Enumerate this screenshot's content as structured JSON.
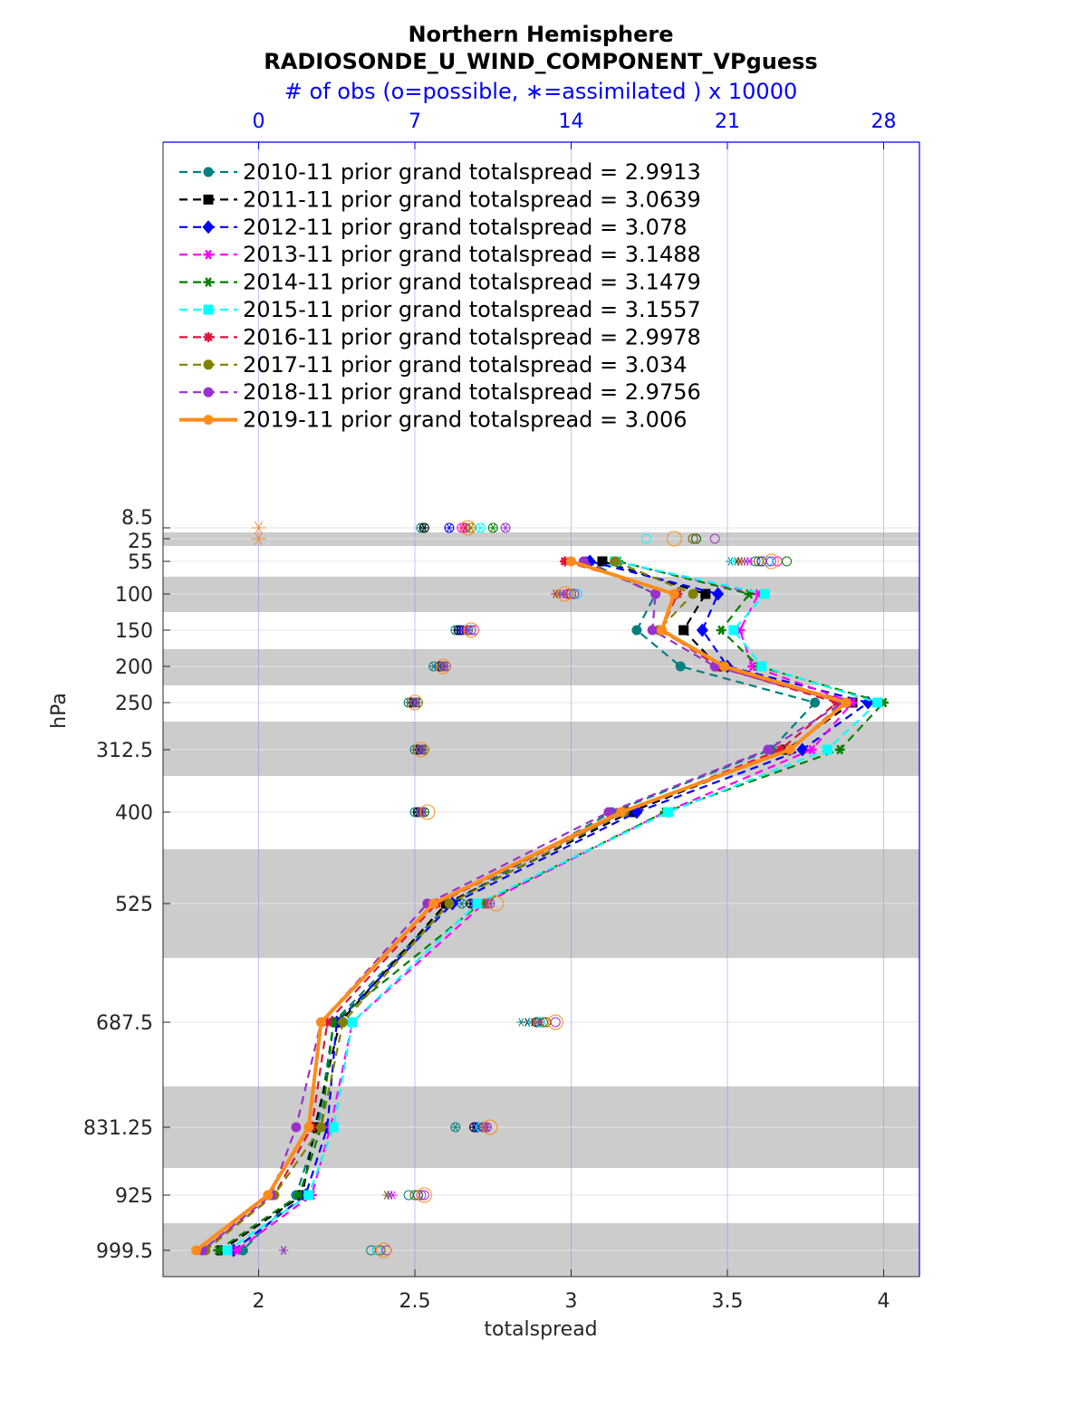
{
  "chart_data": {
    "type": "line",
    "title": "Northern Hemisphere",
    "subtitle": "RADIOSONDE_U_WIND_COMPONENT_VPguess",
    "xlabel": "totalspread",
    "ylabel": "hPa",
    "top_axis_label": "# of obs (o=possible, ∗=assimilated ) x 10000",
    "xlim": [
      1.7,
      4.12
    ],
    "x_ticks": [
      "2",
      "2.5",
      "3",
      "3.5",
      "4"
    ],
    "x_tick_values": [
      2,
      2.5,
      3,
      3.5,
      4
    ],
    "top_ticks": [
      "0",
      "7",
      "14",
      "21",
      "28"
    ],
    "top_tick_values": [
      2,
      2.5,
      3,
      3.5,
      4
    ],
    "y_levels": [
      8.5,
      25,
      55,
      100,
      150,
      200,
      250,
      312.5,
      400,
      525,
      687.5,
      831.25,
      925,
      999.5
    ],
    "y_tick_labels": [
      "8.5",
      "25",
      "55",
      "100",
      "150",
      "200",
      "250",
      "312.5",
      "400",
      "525",
      "687.5",
      "831.25",
      "925",
      "999.5"
    ],
    "y_scale": "reverse (pressure decreasing upward)",
    "grid": "vertical lines at x ticks, shaded alternating pressure bands",
    "legend_position": "top-left",
    "series": [
      {
        "name": "2010-11 prior grand totalspread = 2.9913",
        "color": "#008080",
        "marker": "circle",
        "values": [
          null,
          null,
          3.05,
          3.27,
          3.21,
          3.35,
          3.78,
          3.64,
          3.13,
          2.61,
          2.24,
          2.19,
          2.12,
          1.95
        ],
        "obs_possible": [
          2.52,
          null,
          3.59,
          3.0,
          2.63,
          2.56,
          2.48,
          2.5,
          2.5,
          2.65,
          2.9,
          2.63,
          2.48,
          2.36
        ],
        "obs_assimilated": [
          2.52,
          null,
          3.51,
          2.95,
          2.63,
          2.56,
          2.48,
          2.5,
          2.5,
          2.65,
          2.84,
          2.63,
          2.41,
          2.08
        ]
      },
      {
        "name": "2011-11 prior grand totalspread = 3.0639",
        "color": "#000000",
        "marker": "square",
        "values": [
          null,
          null,
          3.1,
          3.43,
          3.36,
          3.47,
          3.9,
          3.69,
          3.19,
          2.6,
          2.26,
          2.18,
          2.14,
          1.88
        ],
        "obs_possible": [
          2.53,
          3.4,
          3.63,
          3.0,
          2.64,
          2.58,
          2.49,
          2.51,
          2.51,
          2.68,
          2.89,
          2.69,
          2.5,
          2.38
        ],
        "obs_assimilated": [
          2.53,
          null,
          3.53,
          2.96,
          2.64,
          2.58,
          2.49,
          2.51,
          2.51,
          2.68,
          2.86,
          2.69,
          2.41,
          2.08
        ]
      },
      {
        "name": "2012-11 prior grand totalspread = 3.078",
        "color": "#0000ff",
        "marker": "diamond",
        "values": [
          null,
          null,
          3.06,
          3.47,
          3.42,
          3.5,
          3.95,
          3.74,
          3.21,
          2.62,
          2.25,
          2.22,
          2.15,
          1.92
        ],
        "obs_possible": [
          2.61,
          3.39,
          3.61,
          3.0,
          2.65,
          2.58,
          2.5,
          2.52,
          2.52,
          2.69,
          2.9,
          2.7,
          2.51,
          2.38
        ],
        "obs_assimilated": [
          2.61,
          null,
          3.54,
          2.96,
          2.65,
          2.58,
          2.5,
          2.52,
          2.52,
          2.69,
          2.87,
          2.7,
          2.42,
          2.08
        ]
      },
      {
        "name": "2013-11 prior grand totalspread = 3.1488",
        "color": "#ff00ff",
        "marker": "star6",
        "values": [
          null,
          null,
          3.14,
          3.6,
          3.54,
          3.58,
          3.9,
          3.77,
          3.3,
          2.72,
          2.3,
          2.23,
          2.17,
          1.93
        ],
        "obs_possible": [
          2.65,
          3.4,
          3.66,
          3.02,
          2.69,
          2.6,
          2.51,
          2.53,
          2.53,
          2.72,
          2.92,
          2.72,
          2.52,
          2.39
        ],
        "obs_assimilated": [
          2.65,
          null,
          3.57,
          2.98,
          2.68,
          2.6,
          2.51,
          2.53,
          2.53,
          2.72,
          2.89,
          2.72,
          2.43,
          2.08
        ]
      },
      {
        "name": "2014-11 prior grand totalspread = 3.1479",
        "color": "#008000",
        "marker": "star6",
        "values": [
          null,
          null,
          3.15,
          3.57,
          3.48,
          3.6,
          4.0,
          3.86,
          3.3,
          2.71,
          2.24,
          2.2,
          2.13,
          1.87
        ],
        "obs_possible": [
          2.75,
          3.4,
          3.69,
          3.01,
          2.67,
          2.6,
          2.51,
          2.53,
          2.53,
          2.71,
          2.91,
          2.72,
          2.51,
          2.39
        ],
        "obs_assimilated": [
          2.75,
          null,
          3.53,
          2.96,
          2.67,
          2.6,
          2.51,
          2.53,
          2.53,
          2.71,
          2.88,
          2.72,
          2.42,
          2.08
        ]
      },
      {
        "name": "2015-11 prior grand totalspread = 3.1557",
        "color": "#00ffff",
        "marker": "square",
        "values": [
          null,
          null,
          3.14,
          3.62,
          3.52,
          3.61,
          3.98,
          3.82,
          3.31,
          2.7,
          2.3,
          2.24,
          2.16,
          1.9
        ],
        "obs_possible": [
          2.71,
          3.24,
          3.63,
          3.02,
          2.68,
          2.6,
          2.5,
          2.52,
          2.52,
          2.73,
          2.9,
          2.71,
          2.5,
          2.38
        ],
        "obs_assimilated": [
          2.71,
          null,
          3.52,
          2.97,
          2.68,
          2.6,
          2.5,
          2.52,
          2.52,
          2.73,
          2.87,
          2.71,
          2.41,
          2.08
        ]
      },
      {
        "name": "2016-11 prior grand totalspread = 2.9978",
        "color": "#dc143c",
        "marker": "star8",
        "values": [
          null,
          null,
          2.98,
          3.34,
          3.29,
          3.47,
          3.85,
          3.67,
          3.17,
          2.57,
          2.22,
          2.17,
          2.05,
          1.82
        ],
        "obs_possible": [
          2.66,
          3.39,
          3.6,
          2.99,
          2.67,
          2.59,
          2.5,
          2.52,
          2.52,
          2.73,
          2.92,
          2.72,
          2.5,
          2.39
        ],
        "obs_assimilated": [
          2.66,
          null,
          3.54,
          2.95,
          2.66,
          2.59,
          2.5,
          2.52,
          2.52,
          2.73,
          2.88,
          2.72,
          2.41,
          2.08
        ]
      },
      {
        "name": "2017-11 prior grand totalspread = 3.034",
        "color": "#808000",
        "marker": "circle",
        "values": [
          null,
          null,
          3.14,
          3.39,
          3.28,
          3.49,
          3.87,
          3.7,
          3.17,
          2.61,
          2.27,
          2.2,
          2.05,
          1.83
        ],
        "obs_possible": [
          2.68,
          3.39,
          3.6,
          3.0,
          2.67,
          2.59,
          2.5,
          2.52,
          2.52,
          2.73,
          2.92,
          2.73,
          2.5,
          2.39
        ],
        "obs_assimilated": [
          2.68,
          null,
          3.55,
          2.96,
          2.67,
          2.59,
          2.5,
          2.52,
          2.52,
          2.73,
          2.89,
          2.73,
          2.41,
          2.08
        ]
      },
      {
        "name": "2018-11 prior grand totalspread = 2.9756",
        "color": "#9932cc",
        "marker": "circle",
        "values": [
          null,
          null,
          3.04,
          3.27,
          3.26,
          3.46,
          3.87,
          3.63,
          3.12,
          2.54,
          2.2,
          2.12,
          2.04,
          1.82
        ],
        "obs_possible": [
          2.79,
          3.46,
          3.64,
          3.01,
          2.68,
          2.6,
          2.5,
          2.52,
          2.52,
          2.74,
          2.95,
          2.73,
          2.53,
          2.41
        ],
        "obs_assimilated": [
          2.79,
          null,
          3.56,
          2.97,
          2.67,
          2.6,
          2.5,
          2.52,
          2.52,
          2.74,
          2.9,
          2.73,
          2.42,
          2.08
        ]
      },
      {
        "name": "2019-11 prior grand totalspread = 3.006",
        "color": "#ff8c1a",
        "marker": "circle",
        "values": [
          null,
          null,
          3.0,
          3.33,
          3.29,
          3.49,
          3.88,
          3.7,
          3.16,
          2.56,
          2.2,
          2.16,
          2.03,
          1.8
        ],
        "obs_possible": [
          2.67,
          3.33,
          3.64,
          2.98,
          2.68,
          2.59,
          2.5,
          2.52,
          2.54,
          2.76,
          2.95,
          2.74,
          2.53,
          2.4
        ],
        "obs_assimilated": [
          2.0,
          2.0,
          null,
          null,
          null,
          null,
          null,
          null,
          null,
          null,
          null,
          null,
          null,
          null
        ]
      }
    ]
  }
}
